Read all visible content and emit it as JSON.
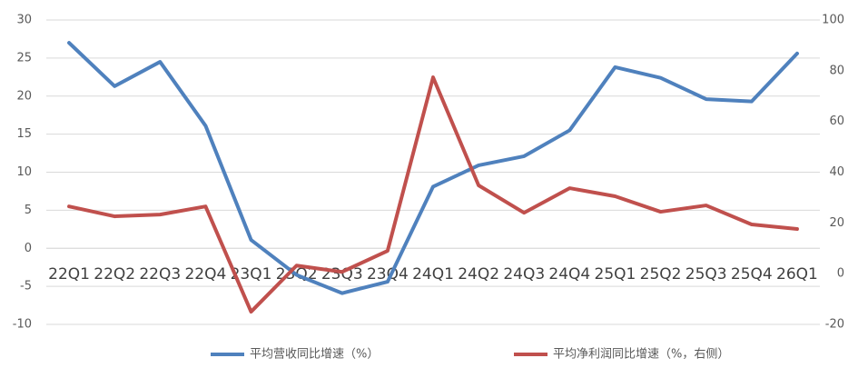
{
  "chart_data": {
    "type": "line",
    "categories": [
      "22Q1",
      "22Q2",
      "22Q3",
      "22Q4",
      "23Q1",
      "23Q2",
      "23Q3",
      "23Q4",
      "24Q1",
      "24Q2",
      "24Q3",
      "24Q4",
      "25Q1",
      "25Q2",
      "25Q3",
      "25Q4",
      "26Q1"
    ],
    "series": [
      {
        "name": "平均营收同比增速（%）",
        "color": "#4f81bd",
        "values": [
          27.0,
          21.3,
          24.5,
          16.1,
          1.1,
          -3.5,
          -5.9,
          -4.4,
          8.1,
          10.9,
          12.1,
          15.5,
          23.8,
          22.4,
          19.6,
          19.3,
          25.6
        ]
      },
      {
        "name": "平均净利润同比增速（%，右侧）",
        "color": "#c0504d",
        "axis": "y2",
        "values": [
          26.5,
          22.6,
          23.3,
          26.5,
          -15,
          3.2,
          0.7,
          9,
          77.4,
          34.8,
          24,
          33.7,
          30.5,
          24.4,
          26.9,
          19.4,
          17.6
        ]
      }
    ],
    "ylim": [
      -10,
      30
    ],
    "yticks": [
      -10,
      -5,
      0,
      5,
      10,
      15,
      20,
      25,
      30
    ],
    "y2lim": [
      -20,
      100
    ],
    "y2ticks": [
      -20,
      0,
      20,
      40,
      60,
      80,
      100
    ],
    "grid": true,
    "legend": "bottom"
  }
}
